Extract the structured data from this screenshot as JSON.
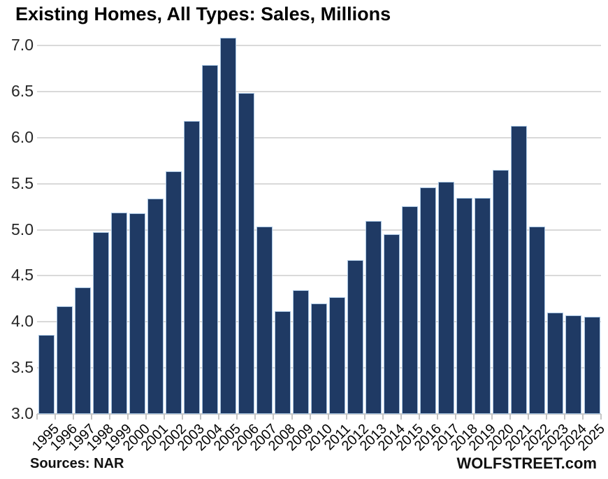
{
  "page": {
    "background_color": "#ffffff"
  },
  "chart_data": {
    "type": "bar",
    "title": "Existing Homes, All Types: Sales, Millions",
    "xlabel": "",
    "ylabel": "",
    "categories": [
      "1995",
      "1996",
      "1997",
      "1998",
      "1999",
      "2000",
      "2001",
      "2002",
      "2003",
      "2004",
      "2005",
      "2006",
      "2007",
      "2008",
      "2009",
      "2010",
      "2011",
      "2012",
      "2013",
      "2014",
      "2015",
      "2016",
      "2017",
      "2018",
      "2019",
      "2020",
      "2021",
      "2022",
      "2023",
      "2024",
      "2025"
    ],
    "values": [
      3.85,
      4.16,
      4.37,
      4.97,
      5.18,
      5.17,
      5.33,
      5.63,
      6.17,
      6.78,
      7.08,
      6.48,
      5.03,
      4.11,
      4.34,
      4.19,
      4.26,
      4.66,
      5.09,
      4.94,
      5.25,
      5.45,
      5.51,
      5.34,
      5.34,
      5.64,
      6.12,
      5.03,
      4.09,
      4.06,
      4.05
    ],
    "ylim": [
      3.0,
      7.0
    ],
    "ytick_step": 0.5,
    "ytick_labels": [
      "3.0",
      "3.5",
      "4.0",
      "4.5",
      "5.0",
      "5.5",
      "6.0",
      "6.5",
      "7.0"
    ],
    "grid": "horizontal",
    "legend": "none",
    "colors": {
      "bar_fill": "#1f3a64",
      "bar_border": "#a9c6e3",
      "gridline": "#d9d9d9",
      "axis_line": "#c6c6c6",
      "tick": "#c6c6c6",
      "title_text": "#000000",
      "label_text": "#262626"
    }
  },
  "footer": {
    "source": "Sources: NAR",
    "watermark": "WOLFSTREET.com"
  }
}
